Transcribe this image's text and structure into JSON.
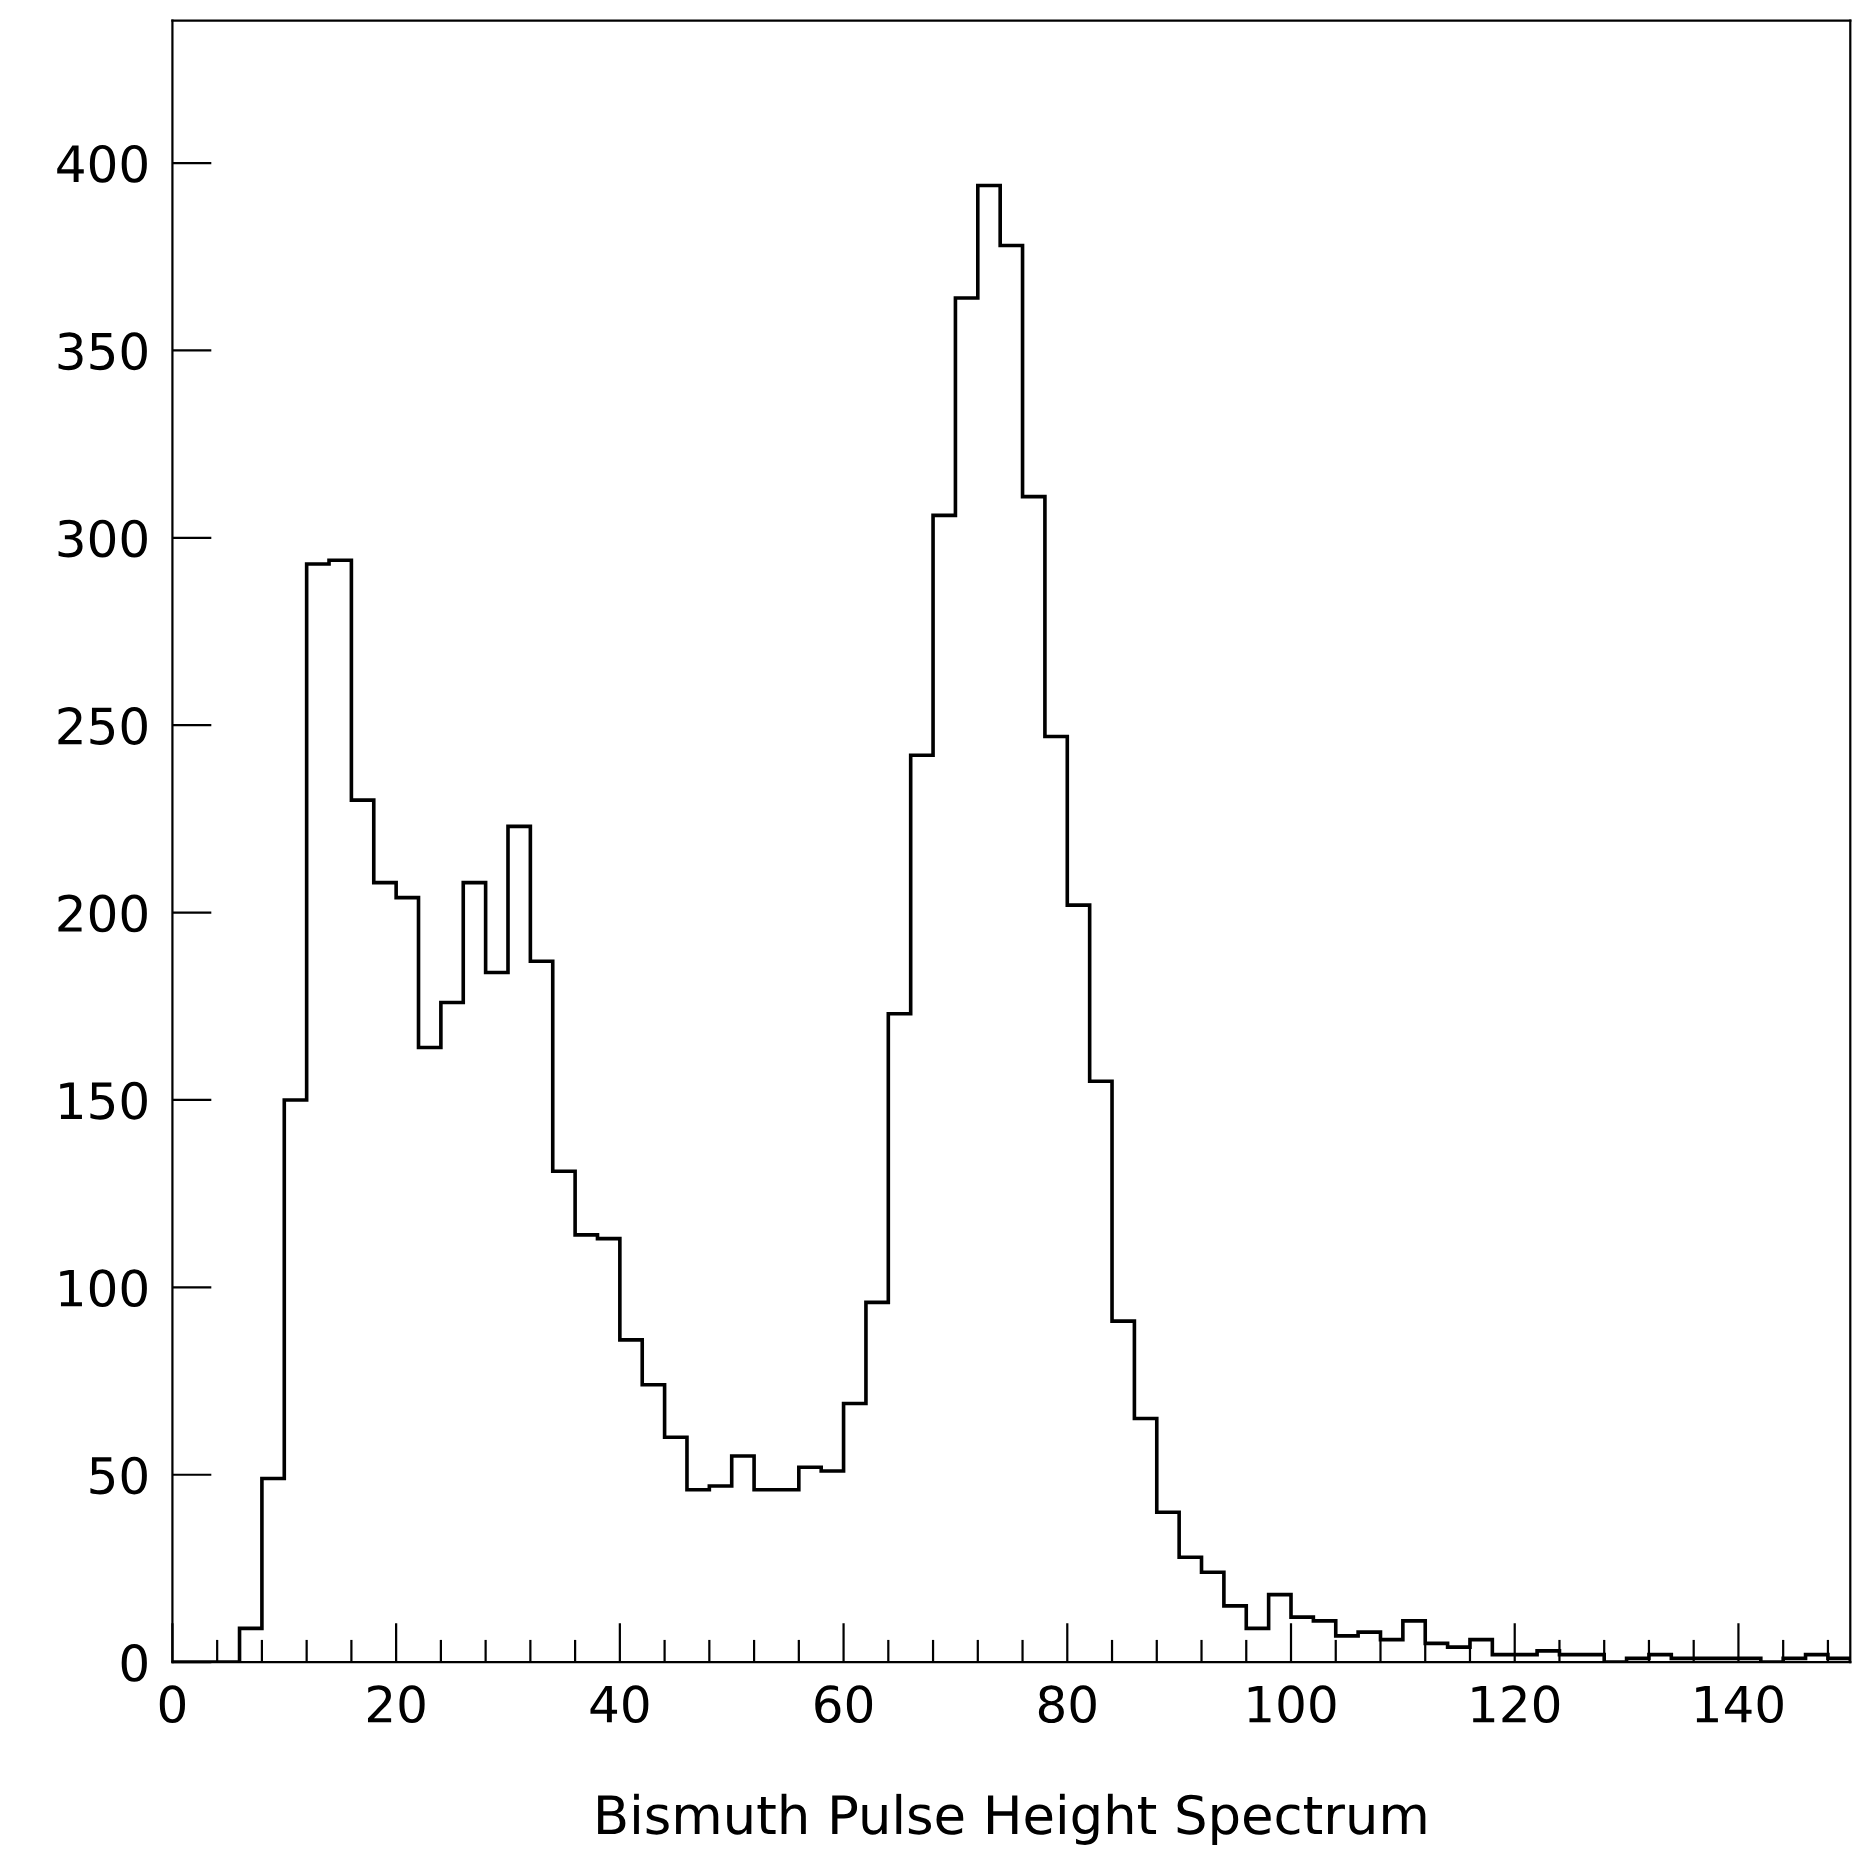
{
  "chart_data": {
    "type": "histogram",
    "xlabel": "Bismuth Pulse Height Spectrum",
    "bins": [
      0,
      2,
      4,
      6,
      8,
      10,
      12,
      14,
      16,
      18,
      20,
      22,
      24,
      26,
      28,
      30,
      32,
      34,
      36,
      38,
      40,
      42,
      44,
      46,
      48,
      50,
      52,
      54,
      56,
      58,
      60,
      62,
      64,
      66,
      68,
      70,
      72,
      74,
      76,
      78,
      80,
      82,
      84,
      86,
      88,
      90,
      92,
      94,
      96,
      98,
      100,
      102,
      104,
      106,
      108,
      110,
      112,
      114,
      116,
      118,
      120,
      122,
      124,
      126,
      128,
      130,
      132,
      134,
      136,
      138,
      140,
      142,
      144,
      146,
      148,
      150
    ],
    "values": [
      0,
      0,
      0,
      9,
      49,
      150,
      293,
      294,
      230,
      208,
      204,
      164,
      176,
      208,
      184,
      223,
      187,
      131,
      114,
      113,
      86,
      74,
      60,
      46,
      47,
      55,
      46,
      46,
      52,
      51,
      69,
      96,
      173,
      242,
      306,
      364,
      394,
      378,
      311,
      247,
      202,
      155,
      91,
      65,
      40,
      28,
      24,
      15,
      9,
      18,
      12,
      11,
      7,
      8,
      6,
      11,
      5,
      4,
      6,
      2,
      2,
      3,
      2,
      2,
      0,
      1,
      2,
      1,
      1,
      1,
      1,
      0,
      1,
      2,
      1
    ],
    "color": "#000000",
    "xlim": [
      0,
      150
    ],
    "ylim": [
      0,
      438
    ],
    "xticks": [
      0,
      {
        "value": 4,
        "label": null
      },
      {
        "value": 8,
        "label": null
      },
      {
        "value": 12,
        "label": null
      },
      {
        "value": 16,
        "label": null
      },
      20,
      {
        "value": 24,
        "label": null
      },
      {
        "value": 28,
        "label": null
      },
      {
        "value": 32,
        "label": null
      },
      {
        "value": 36,
        "label": null
      },
      40,
      {
        "value": 44,
        "label": null
      },
      {
        "value": 48,
        "label": null
      },
      {
        "value": 52,
        "label": null
      },
      {
        "value": 56,
        "label": null
      },
      60,
      {
        "value": 64,
        "label": null
      },
      {
        "value": 68,
        "label": null
      },
      {
        "value": 72,
        "label": null
      },
      {
        "value": 76,
        "label": null
      },
      80,
      {
        "value": 84,
        "label": null
      },
      {
        "value": 88,
        "label": null
      },
      {
        "value": 92,
        "label": null
      },
      {
        "value": 96,
        "label": null
      },
      100,
      {
        "value": 104,
        "label": null
      },
      {
        "value": 108,
        "label": null
      },
      {
        "value": 112,
        "label": null
      },
      {
        "value": 116,
        "label": null
      },
      120,
      {
        "value": 124,
        "label": null
      },
      {
        "value": 128,
        "label": null
      },
      {
        "value": 132,
        "label": null
      },
      {
        "value": 136,
        "label": null
      },
      140,
      {
        "value": 144,
        "label": null
      },
      {
        "value": 148,
        "label": null
      }
    ],
    "yticks": [
      0,
      50,
      100,
      150,
      200,
      250,
      300,
      350,
      400
    ],
    "grid": false
  }
}
